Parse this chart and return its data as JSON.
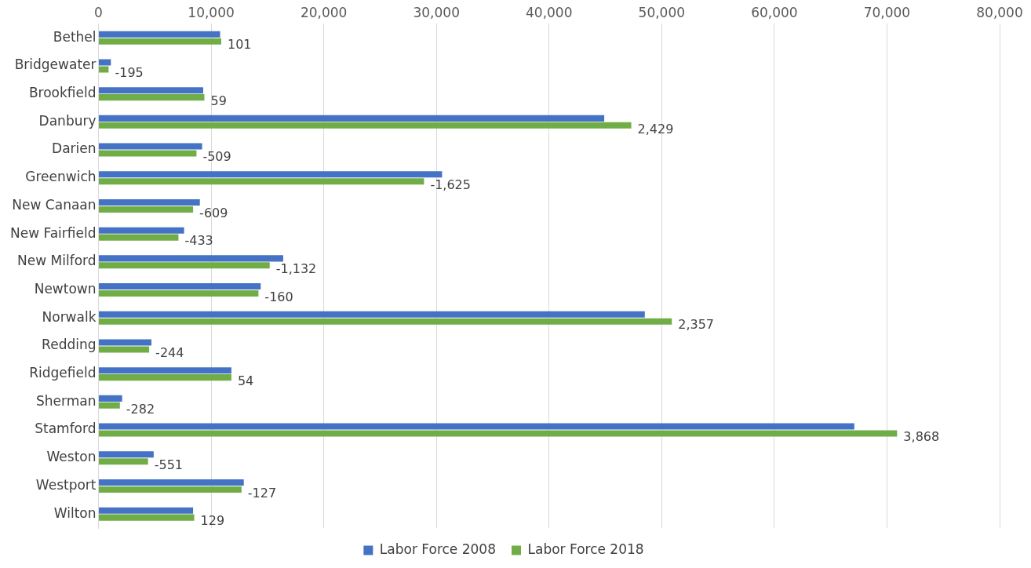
{
  "chart_data": {
    "type": "bar",
    "orientation": "horizontal",
    "categories": [
      "Bethel",
      "Bridgewater",
      "Brookfield",
      "Danbury",
      "Darien",
      "Greenwich",
      "New Canaan",
      "New Fairfield",
      "New Milford",
      "Newtown",
      "Norwalk",
      "Redding",
      "Ridgefield",
      "Sherman",
      "Stamford",
      "Weston",
      "Westport",
      "Wilton"
    ],
    "series": [
      {
        "name": "Labor Force 2008",
        "color": "#4472c4",
        "values": [
          10800,
          1100,
          9300,
          44900,
          9200,
          30500,
          9000,
          7600,
          16400,
          14400,
          48500,
          4700,
          11800,
          2100,
          67100,
          4900,
          12900,
          8400
        ]
      },
      {
        "name": "Labor Force 2018",
        "color": "#70ad47",
        "values": [
          10900,
          900,
          9400,
          47300,
          8700,
          28900,
          8400,
          7100,
          15200,
          14200,
          50900,
          4500,
          11800,
          1900,
          70900,
          4400,
          12700,
          8500
        ]
      }
    ],
    "annotations": [
      {
        "text": "101",
        "x": 10900,
        "y": "Bethel"
      },
      {
        "text": "-195",
        "x": 900,
        "y": "Bridgewater"
      },
      {
        "text": "59",
        "x": 9400,
        "y": "Brookfield"
      },
      {
        "text": "2,429",
        "x": 47300,
        "y": "Danbury"
      },
      {
        "text": "-509",
        "x": 8700,
        "y": "Darien"
      },
      {
        "text": "-1,625",
        "x": 28900,
        "y": "Greenwich"
      },
      {
        "text": "-609",
        "x": 8400,
        "y": "New Canaan"
      },
      {
        "text": "-433",
        "x": 7100,
        "y": "New Fairfield"
      },
      {
        "text": "-1,132",
        "x": 15200,
        "y": "New Milford"
      },
      {
        "text": "-160",
        "x": 14200,
        "y": "Newtown"
      },
      {
        "text": "2,357",
        "x": 50900,
        "y": "Norwalk"
      },
      {
        "text": "-244",
        "x": 4500,
        "y": "Redding"
      },
      {
        "text": "54",
        "x": 11800,
        "y": "Ridgefield"
      },
      {
        "text": "-282",
        "x": 1900,
        "y": "Sherman"
      },
      {
        "text": "3,868",
        "x": 70900,
        "y": "Stamford"
      },
      {
        "text": "-551",
        "x": 4400,
        "y": "Weston"
      },
      {
        "text": "-127",
        "x": 12700,
        "y": "Westport"
      },
      {
        "text": "129",
        "x": 8500,
        "y": "Wilton"
      }
    ],
    "xlim": [
      0,
      80000
    ],
    "xticks": [
      {
        "value": 0,
        "label": "0"
      },
      {
        "value": 10000,
        "label": "10,000"
      },
      {
        "value": 20000,
        "label": "20,000"
      },
      {
        "value": 30000,
        "label": "30,000"
      },
      {
        "value": 40000,
        "label": "40,000"
      },
      {
        "value": 50000,
        "label": "50,000"
      },
      {
        "value": 60000,
        "label": "60,000"
      },
      {
        "value": 70000,
        "label": "70,000"
      },
      {
        "value": 80000,
        "label": "80,000"
      }
    ],
    "grid": "x",
    "legend": "bottom"
  }
}
